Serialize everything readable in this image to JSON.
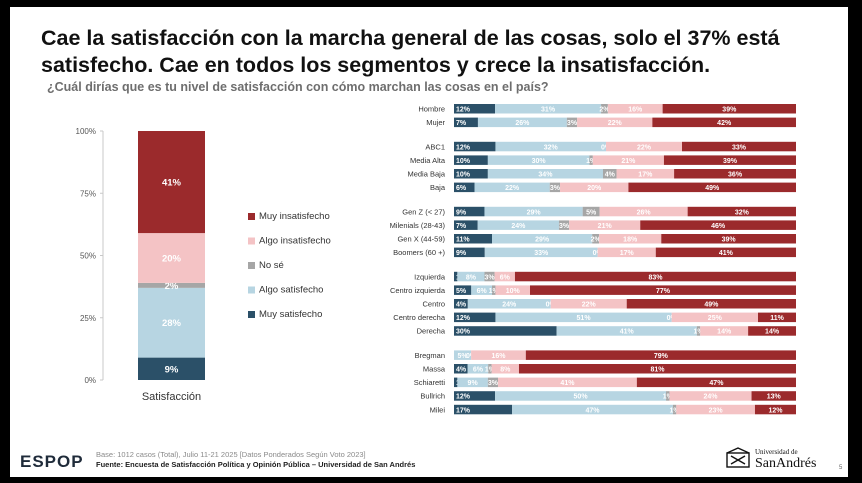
{
  "title": "Cae la satisfacción con la marcha general de las cosas, solo el 37% está satisfecho. Cae en todos los segmentos y crece la insatisfacción.",
  "subtitle": "¿Cuál dirías que es tu nivel de satisfacción con cómo marchan las cosas en el país?",
  "footer": {
    "base": "Base: 1012 casos (Total), Julio 11-21 2025 [Datos Ponderados Según Voto 2023]",
    "source": "Fuente: Encuesta de Satisfacción Política y Opinión Pública – Universidad de San Andrés"
  },
  "logos": {
    "espop": "ESPOP",
    "udesa_top": "Universidad de",
    "udesa_main": "SanAndrés"
  },
  "page_number": "5",
  "colors": {
    "muy_insatisfecho": "#9b2a2c",
    "algo_insatisfecho": "#f4c3c5",
    "no_se": "#a6a6a6",
    "algo_satisfecho": "#b7d5e2",
    "muy_satisfecho": "#2b5068"
  },
  "chart_data": [
    {
      "type": "bar",
      "stacked": true,
      "categories": [
        "Satisfacción"
      ],
      "ylim": [
        0,
        100
      ],
      "yticks": [
        "0%",
        "25%",
        "50%",
        "75%",
        "100%"
      ],
      "series": [
        {
          "name": "Muy satisfecho",
          "values": [
            9
          ]
        },
        {
          "name": "Algo satisfecho",
          "values": [
            28
          ]
        },
        {
          "name": "No sé",
          "values": [
            2
          ]
        },
        {
          "name": "Algo insatisfecho",
          "values": [
            20
          ]
        },
        {
          "name": "Muy insatisfecho",
          "values": [
            41
          ]
        }
      ],
      "legend": [
        "Muy insatisfecho",
        "Algo insatisfecho",
        "No sé",
        "Algo satisfecho",
        "Muy satisfecho"
      ]
    },
    {
      "type": "bar",
      "orientation": "horizontal",
      "stacked": true,
      "groups": [
        {
          "rows": [
            {
              "label": "Hombre",
              "values": [
                12,
                31,
                2,
                16,
                39
              ]
            },
            {
              "label": "Mujer",
              "values": [
                7,
                26,
                3,
                22,
                42
              ]
            }
          ]
        },
        {
          "rows": [
            {
              "label": "ABC1",
              "values": [
                12,
                32,
                0,
                22,
                33
              ]
            },
            {
              "label": "Media Alta",
              "values": [
                10,
                30,
                1,
                21,
                39
              ]
            },
            {
              "label": "Media Baja",
              "values": [
                10,
                34,
                4,
                17,
                36
              ]
            },
            {
              "label": "Baja",
              "values": [
                6,
                22,
                3,
                20,
                49
              ]
            }
          ]
        },
        {
          "rows": [
            {
              "label": "Gen Z (< 27)",
              "values": [
                9,
                29,
                5,
                26,
                32
              ]
            },
            {
              "label": "Milenials (28-43)",
              "values": [
                7,
                24,
                3,
                21,
                46
              ]
            },
            {
              "label": "Gen X (44-59)",
              "values": [
                11,
                29,
                2,
                18,
                39
              ]
            },
            {
              "label": "Boomers (60 +)",
              "values": [
                9,
                33,
                0,
                17,
                41
              ]
            }
          ]
        },
        {
          "rows": [
            {
              "label": "Izquierda",
              "values": [
                1,
                8,
                3,
                6,
                83
              ]
            },
            {
              "label": "Centro izquierda",
              "values": [
                5,
                6,
                1,
                10,
                77
              ]
            },
            {
              "label": "Centro",
              "values": [
                4,
                24,
                0,
                22,
                49
              ]
            },
            {
              "label": "Centro derecha",
              "values": [
                12,
                51,
                0,
                25,
                11
              ]
            },
            {
              "label": "Derecha",
              "values": [
                30,
                41,
                1,
                14,
                14
              ]
            }
          ]
        },
        {
          "rows": [
            {
              "label": "Bregman",
              "values": [
                0,
                5,
                0,
                16,
                79
              ]
            },
            {
              "label": "Massa",
              "values": [
                4,
                6,
                1,
                8,
                81
              ]
            },
            {
              "label": "Schiaretti",
              "values": [
                1,
                9,
                3,
                41,
                47
              ]
            },
            {
              "label": "Bullrich",
              "values": [
                12,
                50,
                1,
                24,
                13
              ]
            },
            {
              "label": "Milei",
              "values": [
                17,
                47,
                1,
                23,
                12
              ]
            }
          ]
        }
      ]
    }
  ]
}
